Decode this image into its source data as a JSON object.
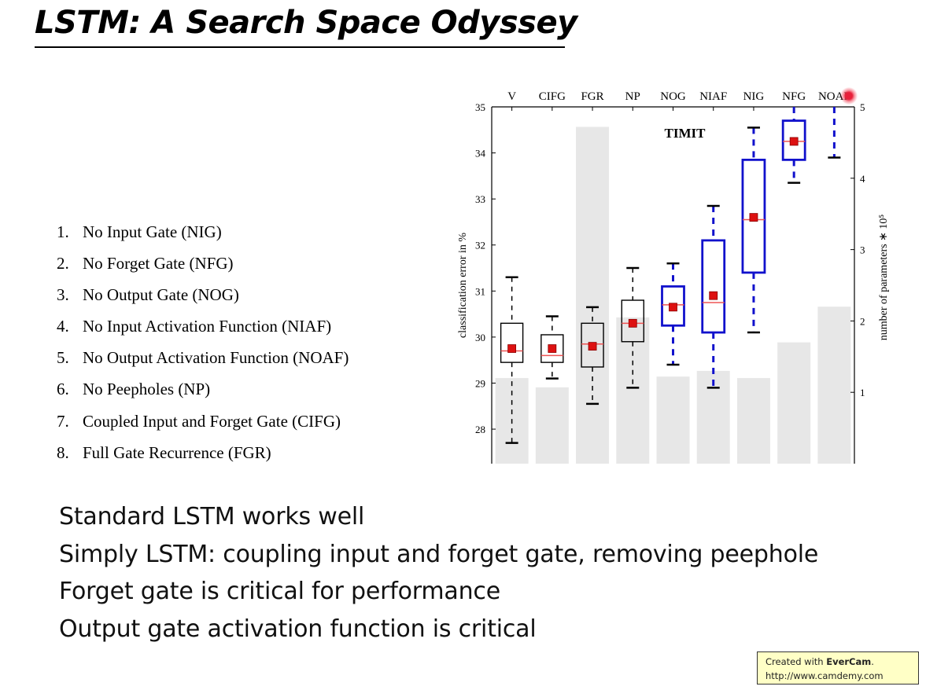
{
  "slide": {
    "title": "LSTM: A Search Space Odyssey",
    "variants": [
      {
        "num": "1.",
        "text": "No Input Gate (NIG)"
      },
      {
        "num": "2.",
        "text": "No Forget Gate (NFG)"
      },
      {
        "num": "3.",
        "text": "No Output Gate (NOG)"
      },
      {
        "num": "4.",
        "text": "No Input Activation Function (NIAF)"
      },
      {
        "num": "5.",
        "text": "No Output Activation Function (NOAF)"
      },
      {
        "num": "6.",
        "text": "No Peepholes (NP)"
      },
      {
        "num": "7.",
        "text": "Coupled Input and Forget Gate (CIFG)"
      },
      {
        "num": "8.",
        "text": "Full Gate Recurrence (FGR)"
      }
    ],
    "notes": [
      "Standard LSTM works well",
      "Simply LSTM: coupling input and forget gate, removing peephole",
      "Forget gate is critical for performance",
      "Output gate activation function is critical"
    ],
    "badge": {
      "prefix": "Created with ",
      "brand": "EverCam",
      "suffix": ".",
      "url": "http://www.camdemy.com"
    }
  },
  "chart_data": {
    "type": "box",
    "annotation": "TIMIT",
    "categories": [
      "V",
      "CIFG",
      "FGR",
      "NP",
      "NOG",
      "NIAF",
      "NIG",
      "NFG",
      "NOAF"
    ],
    "ylabel": "classification error in %",
    "ylabel_right": "number of parameters ∗ 10⁵",
    "ylim": [
      27.25,
      35
    ],
    "y_ticks": [
      28,
      29,
      30,
      31,
      32,
      33,
      34,
      35
    ],
    "ylim_right": [
      0,
      5
    ],
    "y_ticks_right": [
      1,
      2,
      3,
      4,
      5
    ],
    "boxes": [
      {
        "whisker_low": 27.7,
        "q1": 29.45,
        "median": 29.7,
        "q3": 30.3,
        "whisker_high": 31.3,
        "mean": 29.75,
        "highlight": false
      },
      {
        "whisker_low": 29.1,
        "q1": 29.45,
        "median": 29.6,
        "q3": 30.05,
        "whisker_high": 30.45,
        "mean": 29.75,
        "highlight": false
      },
      {
        "whisker_low": 28.55,
        "q1": 29.35,
        "median": 29.85,
        "q3": 30.3,
        "whisker_high": 30.65,
        "mean": 29.8,
        "highlight": false
      },
      {
        "whisker_low": 28.9,
        "q1": 29.9,
        "median": 30.3,
        "q3": 30.8,
        "whisker_high": 31.5,
        "mean": 30.3,
        "highlight": false
      },
      {
        "whisker_low": 29.4,
        "q1": 30.25,
        "median": 30.7,
        "q3": 31.1,
        "whisker_high": 31.6,
        "mean": 30.65,
        "highlight": true
      },
      {
        "whisker_low": 28.9,
        "q1": 30.1,
        "median": 30.75,
        "q3": 32.1,
        "whisker_high": 32.85,
        "mean": 30.9,
        "highlight": true
      },
      {
        "whisker_low": 30.1,
        "q1": 31.4,
        "median": 32.55,
        "q3": 33.85,
        "whisker_high": 34.55,
        "mean": 32.6,
        "highlight": true
      },
      {
        "whisker_low": 33.35,
        "q1": 33.85,
        "median": 34.25,
        "q3": 34.7,
        "whisker_high": 35.0,
        "mean": 34.25,
        "highlight": true
      },
      {
        "whisker_low": 33.9,
        "q1": null,
        "median": null,
        "q3": null,
        "whisker_high": 35.0,
        "mean": null,
        "highlight": true
      }
    ],
    "parameters": [
      1.2,
      1.07,
      4.72,
      2.05,
      1.22,
      1.3,
      1.2,
      1.7,
      2.2
    ],
    "colors": {
      "default_box": "#000000",
      "highlight_box": "#1111cc",
      "mean_marker": "#dd1111",
      "median_line": "#ee5555",
      "param_bar": "#e7e7e7"
    }
  }
}
